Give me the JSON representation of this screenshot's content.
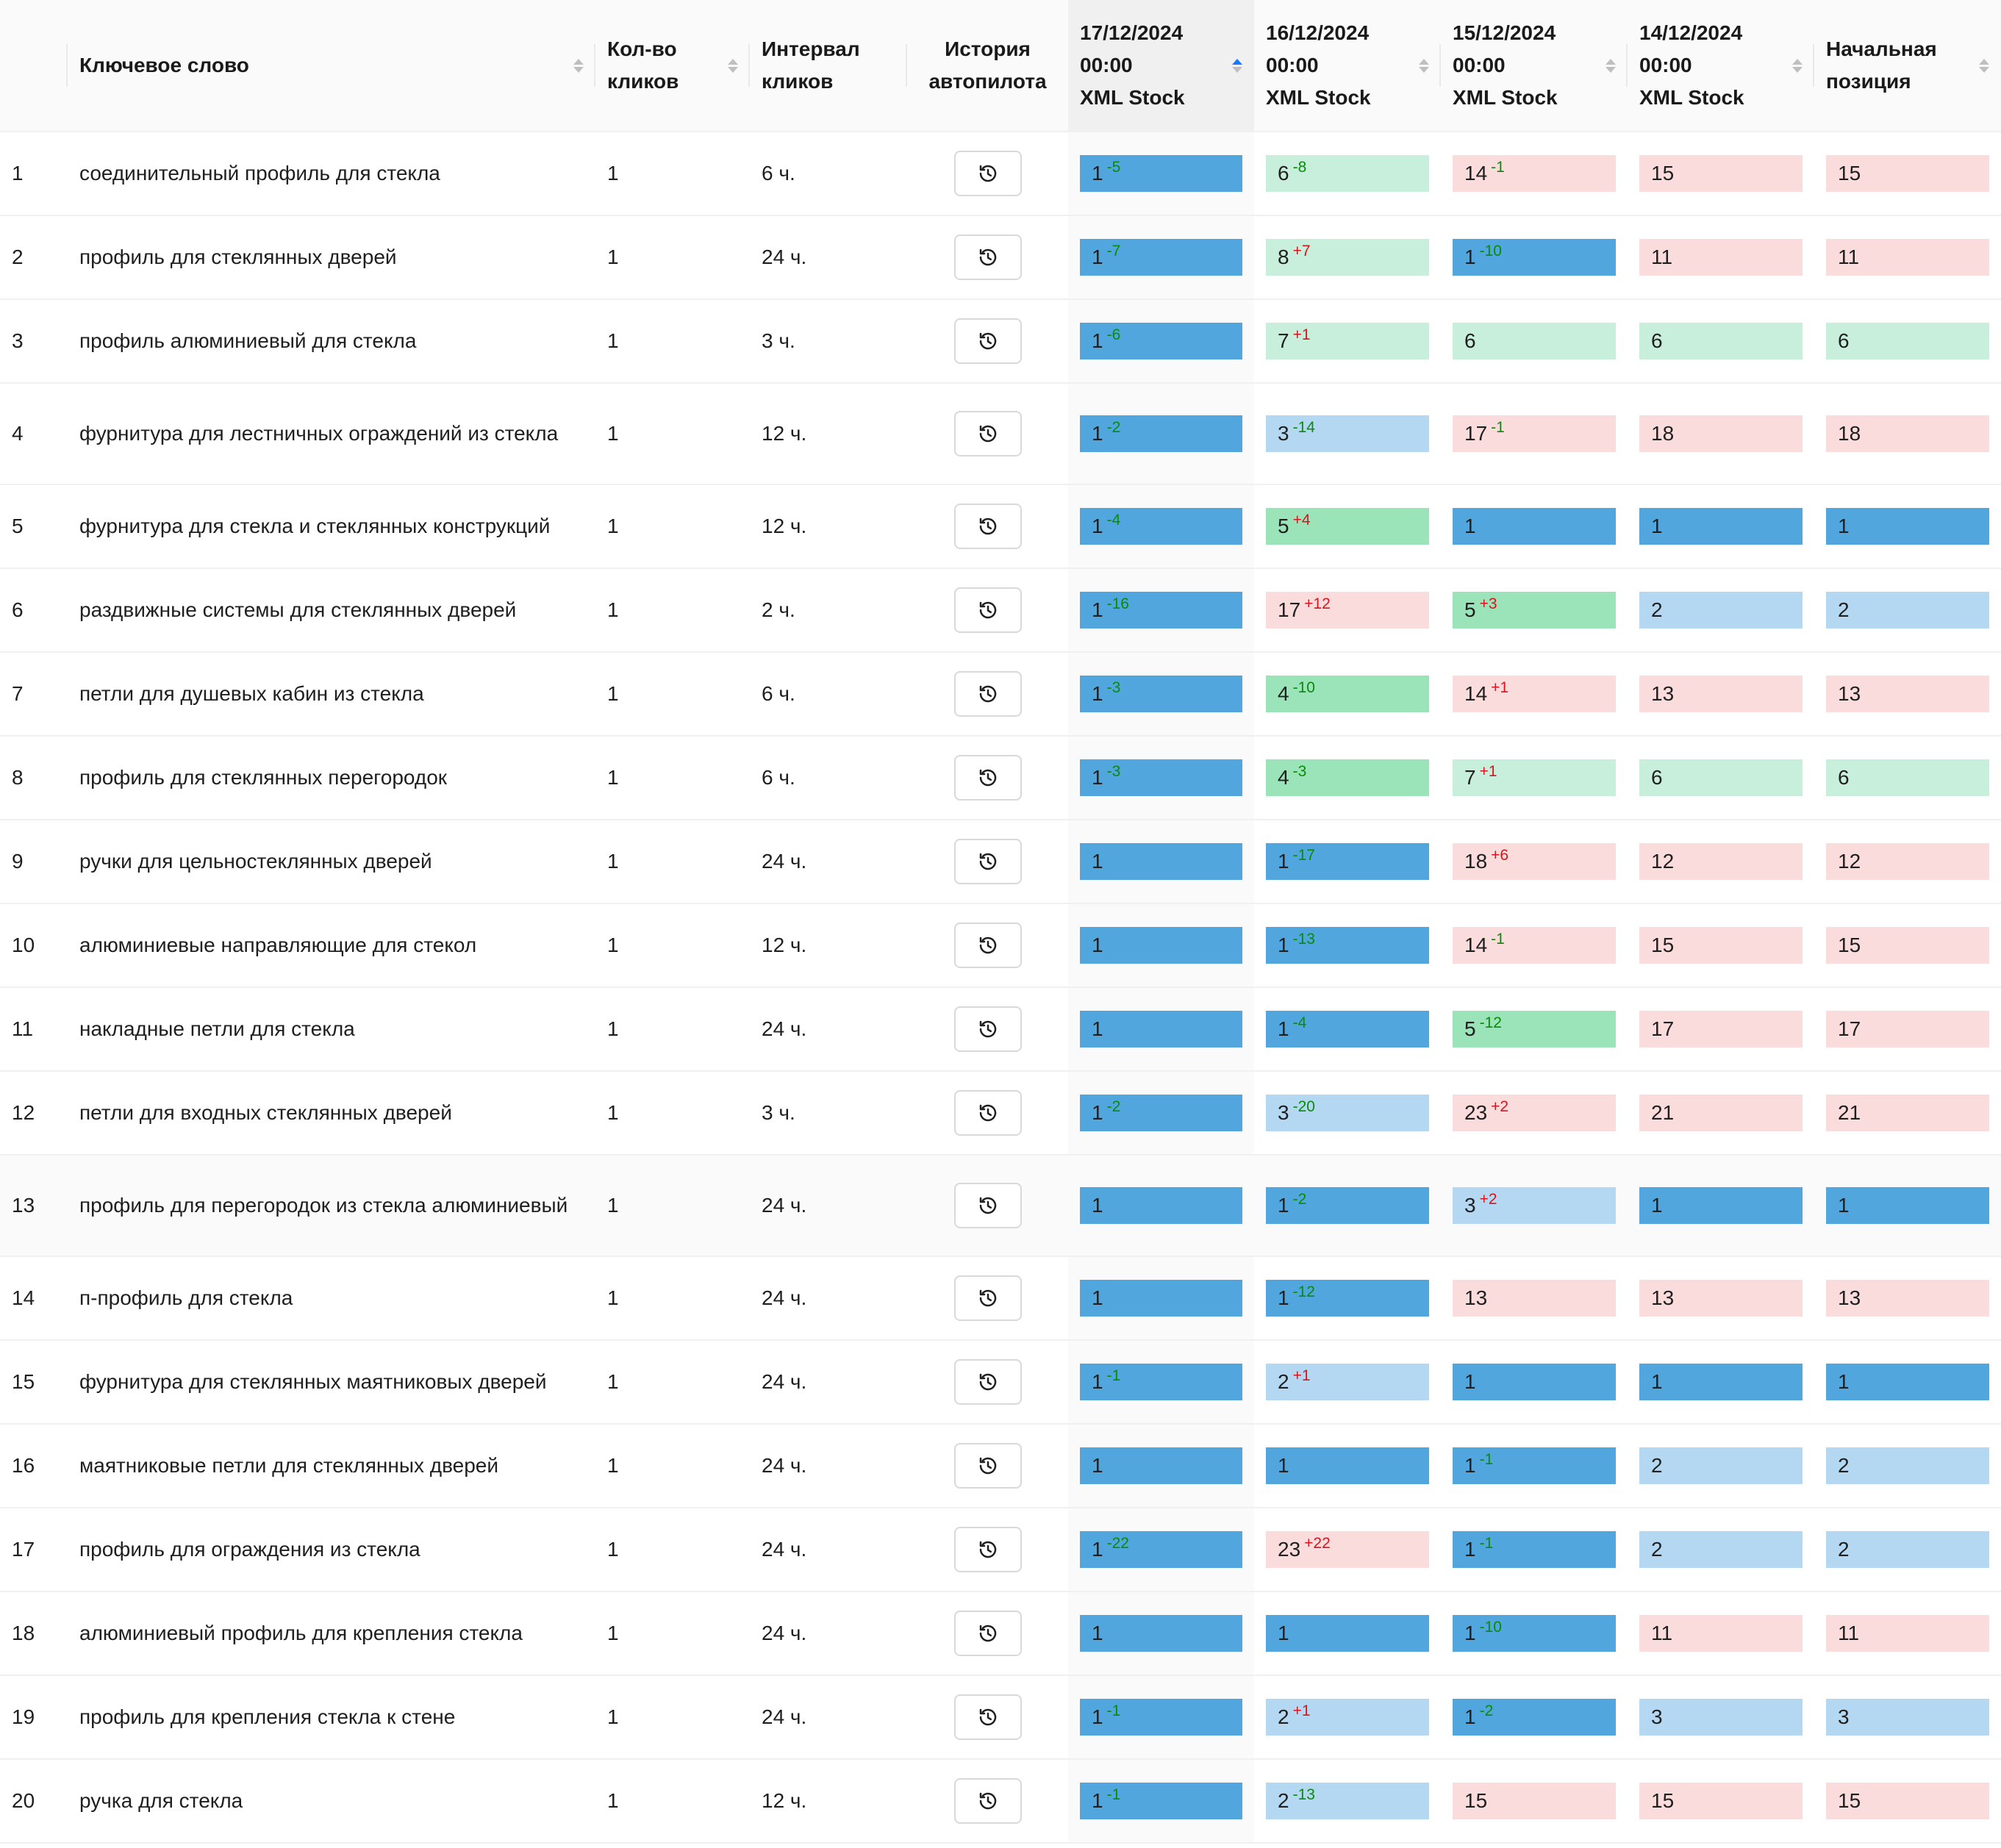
{
  "colors": {
    "top": "#51a6de",
    "top3": "#b4d8f2",
    "top5": "#9be3b8",
    "top10": "#c8eedc",
    "rest": "#fbdcdc",
    "delta_up": "#0a8a0a",
    "delta_down": "#d9141c"
  },
  "header": {
    "keyword": "Ключевое слово",
    "clicks": [
      "Кол-во",
      "кликов"
    ],
    "interval": [
      "Интервал",
      "кликов"
    ],
    "history": [
      "История",
      "автопилота"
    ],
    "dates": [
      {
        "date": "17/12/2024",
        "time": "00:00",
        "engine": "XML Stock"
      },
      {
        "date": "16/12/2024",
        "time": "00:00",
        "engine": "XML Stock"
      },
      {
        "date": "15/12/2024",
        "time": "00:00",
        "engine": "XML Stock"
      },
      {
        "date": "14/12/2024",
        "time": "00:00",
        "engine": "XML Stock"
      }
    ],
    "initial": [
      "Начальная",
      "позиция"
    ]
  },
  "rows": [
    {
      "n": "1",
      "keyword": "соединительный профиль для стекла",
      "clicks": "1",
      "interval": "6 ч.",
      "pos": [
        {
          "v": "1",
          "d": "-5"
        },
        {
          "v": "6",
          "d": "-8"
        },
        {
          "v": "14",
          "d": "-1"
        },
        {
          "v": "15",
          "d": ""
        },
        {
          "v": "15",
          "d": ""
        }
      ]
    },
    {
      "n": "2",
      "keyword": "профиль для стеклянных дверей",
      "clicks": "1",
      "interval": "24 ч.",
      "pos": [
        {
          "v": "1",
          "d": "-7"
        },
        {
          "v": "8",
          "d": "+7"
        },
        {
          "v": "1",
          "d": "-10"
        },
        {
          "v": "11",
          "d": ""
        },
        {
          "v": "11",
          "d": ""
        }
      ]
    },
    {
      "n": "3",
      "keyword": "профиль алюминиевый для стекла",
      "clicks": "1",
      "interval": "3 ч.",
      "pos": [
        {
          "v": "1",
          "d": "-6"
        },
        {
          "v": "7",
          "d": "+1"
        },
        {
          "v": "6",
          "d": ""
        },
        {
          "v": "6",
          "d": ""
        },
        {
          "v": "6",
          "d": ""
        }
      ]
    },
    {
      "n": "4",
      "keyword": "фурнитура для лестничных ограждений из стекла",
      "clicks": "1",
      "interval": "12 ч.",
      "tall": true,
      "pos": [
        {
          "v": "1",
          "d": "-2"
        },
        {
          "v": "3",
          "d": "-14"
        },
        {
          "v": "17",
          "d": "-1"
        },
        {
          "v": "18",
          "d": ""
        },
        {
          "v": "18",
          "d": ""
        }
      ]
    },
    {
      "n": "5",
      "keyword": "фурнитура для стекла и стеклянных конструкций",
      "clicks": "1",
      "interval": "12 ч.",
      "pos": [
        {
          "v": "1",
          "d": "-4"
        },
        {
          "v": "5",
          "d": "+4"
        },
        {
          "v": "1",
          "d": ""
        },
        {
          "v": "1",
          "d": ""
        },
        {
          "v": "1",
          "d": ""
        }
      ]
    },
    {
      "n": "6",
      "keyword": "раздвижные системы для стеклянных дверей",
      "clicks": "1",
      "interval": "2 ч.",
      "pos": [
        {
          "v": "1",
          "d": "-16"
        },
        {
          "v": "17",
          "d": "+12"
        },
        {
          "v": "5",
          "d": "+3"
        },
        {
          "v": "2",
          "d": ""
        },
        {
          "v": "2",
          "d": ""
        }
      ]
    },
    {
      "n": "7",
      "keyword": "петли для душевых кабин из стекла",
      "clicks": "1",
      "interval": "6 ч.",
      "pos": [
        {
          "v": "1",
          "d": "-3"
        },
        {
          "v": "4",
          "d": "-10"
        },
        {
          "v": "14",
          "d": "+1"
        },
        {
          "v": "13",
          "d": ""
        },
        {
          "v": "13",
          "d": ""
        }
      ]
    },
    {
      "n": "8",
      "keyword": "профиль для стеклянных перегородок",
      "clicks": "1",
      "interval": "6 ч.",
      "pos": [
        {
          "v": "1",
          "d": "-3"
        },
        {
          "v": "4",
          "d": "-3"
        },
        {
          "v": "7",
          "d": "+1"
        },
        {
          "v": "6",
          "d": ""
        },
        {
          "v": "6",
          "d": ""
        }
      ]
    },
    {
      "n": "9",
      "keyword": "ручки для цельностеклянных дверей",
      "clicks": "1",
      "interval": "24 ч.",
      "pos": [
        {
          "v": "1",
          "d": ""
        },
        {
          "v": "1",
          "d": "-17"
        },
        {
          "v": "18",
          "d": "+6"
        },
        {
          "v": "12",
          "d": ""
        },
        {
          "v": "12",
          "d": ""
        }
      ]
    },
    {
      "n": "10",
      "keyword": "алюминиевые направляющие для стекол",
      "clicks": "1",
      "interval": "12 ч.",
      "pos": [
        {
          "v": "1",
          "d": ""
        },
        {
          "v": "1",
          "d": "-13"
        },
        {
          "v": "14",
          "d": "-1"
        },
        {
          "v": "15",
          "d": ""
        },
        {
          "v": "15",
          "d": ""
        }
      ]
    },
    {
      "n": "11",
      "keyword": "накладные петли для стекла",
      "clicks": "1",
      "interval": "24 ч.",
      "pos": [
        {
          "v": "1",
          "d": ""
        },
        {
          "v": "1",
          "d": "-4"
        },
        {
          "v": "5",
          "d": "-12"
        },
        {
          "v": "17",
          "d": ""
        },
        {
          "v": "17",
          "d": ""
        }
      ]
    },
    {
      "n": "12",
      "keyword": "петли для входных стеклянных дверей",
      "clicks": "1",
      "interval": "3 ч.",
      "pos": [
        {
          "v": "1",
          "d": "-2"
        },
        {
          "v": "3",
          "d": "-20"
        },
        {
          "v": "23",
          "d": "+2"
        },
        {
          "v": "21",
          "d": ""
        },
        {
          "v": "21",
          "d": ""
        }
      ]
    },
    {
      "n": "13",
      "keyword": "профиль для перегородок из стекла алюминиевый",
      "clicks": "1",
      "interval": "24 ч.",
      "tall": true,
      "hover": true,
      "pos": [
        {
          "v": "1",
          "d": ""
        },
        {
          "v": "1",
          "d": "-2"
        },
        {
          "v": "3",
          "d": "+2"
        },
        {
          "v": "1",
          "d": ""
        },
        {
          "v": "1",
          "d": ""
        }
      ]
    },
    {
      "n": "14",
      "keyword": "п-профиль для стекла",
      "clicks": "1",
      "interval": "24 ч.",
      "pos": [
        {
          "v": "1",
          "d": ""
        },
        {
          "v": "1",
          "d": "-12"
        },
        {
          "v": "13",
          "d": ""
        },
        {
          "v": "13",
          "d": ""
        },
        {
          "v": "13",
          "d": ""
        }
      ]
    },
    {
      "n": "15",
      "keyword": "фурнитура для стеклянных маятниковых дверей",
      "clicks": "1",
      "interval": "24 ч.",
      "pos": [
        {
          "v": "1",
          "d": "-1"
        },
        {
          "v": "2",
          "d": "+1"
        },
        {
          "v": "1",
          "d": ""
        },
        {
          "v": "1",
          "d": ""
        },
        {
          "v": "1",
          "d": ""
        }
      ]
    },
    {
      "n": "16",
      "keyword": "маятниковые петли для стеклянных дверей",
      "clicks": "1",
      "interval": "24 ч.",
      "pos": [
        {
          "v": "1",
          "d": ""
        },
        {
          "v": "1",
          "d": ""
        },
        {
          "v": "1",
          "d": "-1"
        },
        {
          "v": "2",
          "d": ""
        },
        {
          "v": "2",
          "d": ""
        }
      ]
    },
    {
      "n": "17",
      "keyword": "профиль для ограждения из стекла",
      "clicks": "1",
      "interval": "24 ч.",
      "pos": [
        {
          "v": "1",
          "d": "-22"
        },
        {
          "v": "23",
          "d": "+22"
        },
        {
          "v": "1",
          "d": "-1"
        },
        {
          "v": "2",
          "d": ""
        },
        {
          "v": "2",
          "d": ""
        }
      ]
    },
    {
      "n": "18",
      "keyword": "алюминиевый профиль для крепления стекла",
      "clicks": "1",
      "interval": "24 ч.",
      "pos": [
        {
          "v": "1",
          "d": ""
        },
        {
          "v": "1",
          "d": ""
        },
        {
          "v": "1",
          "d": "-10"
        },
        {
          "v": "11",
          "d": ""
        },
        {
          "v": "11",
          "d": ""
        }
      ]
    },
    {
      "n": "19",
      "keyword": "профиль для крепления стекла к стене",
      "clicks": "1",
      "interval": "24 ч.",
      "pos": [
        {
          "v": "1",
          "d": "-1"
        },
        {
          "v": "2",
          "d": "+1"
        },
        {
          "v": "1",
          "d": "-2"
        },
        {
          "v": "3",
          "d": ""
        },
        {
          "v": "3",
          "d": ""
        }
      ]
    },
    {
      "n": "20",
      "keyword": "ручка для стекла",
      "clicks": "1",
      "interval": "12 ч.",
      "pos": [
        {
          "v": "1",
          "d": "-1"
        },
        {
          "v": "2",
          "d": "-13"
        },
        {
          "v": "15",
          "d": ""
        },
        {
          "v": "15",
          "d": ""
        },
        {
          "v": "15",
          "d": ""
        }
      ]
    }
  ]
}
